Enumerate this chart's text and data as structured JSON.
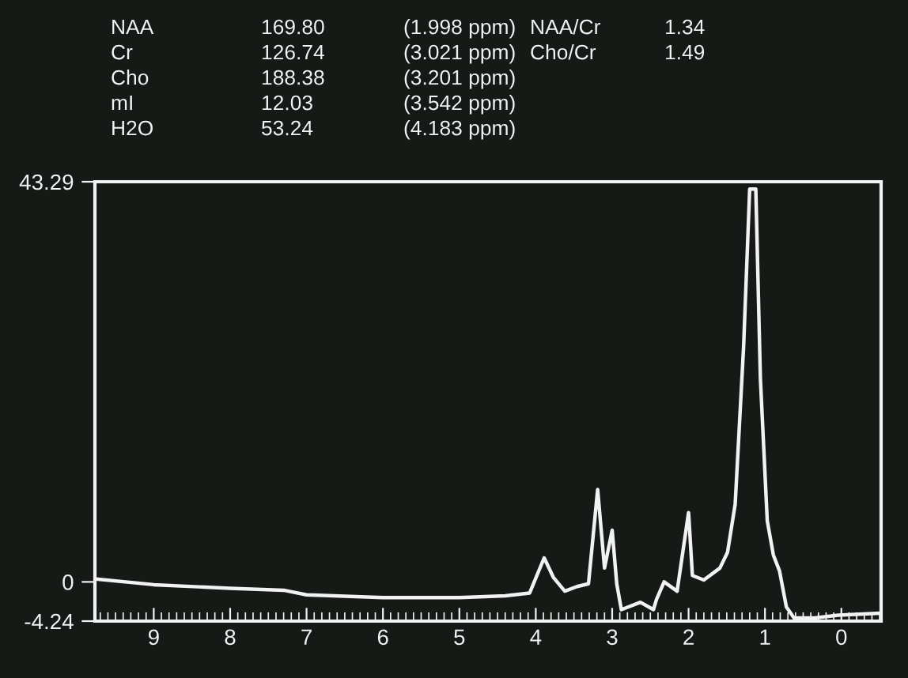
{
  "chart_data": {
    "type": "line",
    "color": "#f2f2f2",
    "annotations": [
      "NAA",
      "169.80",
      "(1.998 ppm)",
      "Cr",
      "126.74",
      "(3.021 ppm)",
      "Cho",
      "188.38",
      "(3.201 ppm)",
      "mI",
      "12.03",
      "(3.542 ppm)",
      "H2O",
      "53.24",
      "(4.183 ppm)",
      "NAA/Cr",
      "1.34",
      "Cho/Cr",
      "1.49"
    ],
    "x": [
      9.73,
      9.0,
      8.0,
      7.3,
      7.0,
      6.0,
      5.0,
      4.4,
      4.08,
      3.89,
      3.77,
      3.62,
      3.46,
      3.31,
      3.19,
      3.1,
      3.0,
      2.94,
      2.88,
      2.63,
      2.46,
      2.42,
      2.32,
      2.15,
      2.0,
      1.95,
      1.8,
      1.59,
      1.49,
      1.39,
      1.28,
      1.2,
      1.12,
      1.06,
      0.97,
      0.89,
      0.81,
      0.72,
      0.62,
      0.35,
      0.04,
      -0.48
    ],
    "values": [
      0.3,
      -0.3,
      -0.7,
      -0.9,
      -1.4,
      -1.7,
      -1.7,
      -1.5,
      -1.2,
      2.6,
      0.5,
      -1.0,
      -0.5,
      -0.2,
      10.0,
      1.5,
      5.6,
      -0.2,
      -3.0,
      -2.2,
      -3.0,
      -1.9,
      0.0,
      -1.0,
      7.5,
      0.7,
      0.2,
      1.5,
      3.2,
      8.4,
      25.4,
      42.5,
      42.5,
      22.0,
      6.6,
      2.9,
      1.2,
      -2.7,
      -3.9,
      -3.9,
      -3.6,
      -3.4
    ],
    "xlim": [
      9.77,
      -0.52
    ],
    "ylim": [
      -4.24,
      43.29
    ],
    "xticks": [
      9,
      8,
      7,
      6,
      5,
      4,
      3,
      2,
      1,
      0
    ],
    "yticks": [
      43.29,
      0,
      -4.24
    ],
    "grid": false,
    "legend": false,
    "marker": "none",
    "line_style": "solid"
  }
}
